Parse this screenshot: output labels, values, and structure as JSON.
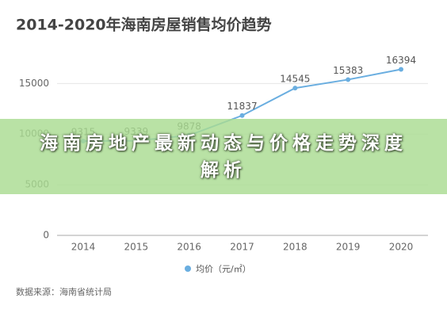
{
  "chart_data": {
    "type": "line",
    "title": "2014-2020年海南房屋销售均价趋势",
    "categories": [
      "2014",
      "2015",
      "2016",
      "2017",
      "2018",
      "2019",
      "2020"
    ],
    "series": [
      {
        "name": "均价（元/㎡）",
        "color": "#6aaee0",
        "values": [
          9315,
          9339,
          9878,
          11837,
          14545,
          15383,
          16394
        ]
      }
    ],
    "ylim": [
      0,
      18000
    ],
    "yticks": [
      0,
      5000,
      10000,
      15000
    ],
    "grid": true,
    "source": "数据来源：海南省统计局"
  },
  "overlay": {
    "headline": "海南房地产最新动态与价格走势深度解析"
  }
}
